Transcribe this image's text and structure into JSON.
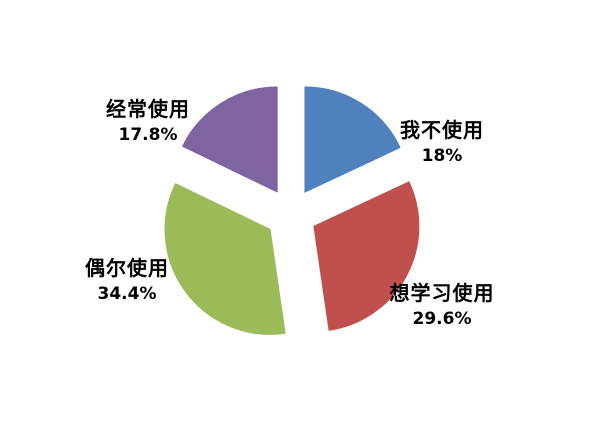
{
  "page": {
    "background_color": "#ffffff",
    "text_color": "#000000"
  },
  "chart_data": {
    "type": "pie",
    "title": "",
    "exploded": true,
    "start_angle_deg": 0,
    "direction": "clockwise",
    "legend": "none",
    "labels_position": "outside",
    "categories": [
      "我不使用",
      "想学习使用",
      "偶尔使用",
      "经常使用"
    ],
    "values": [
      18,
      29.6,
      34.4,
      17.8
    ],
    "slices": [
      {
        "label": "我不使用",
        "pct_label": "18%",
        "value": 18,
        "color": "#4f81bd"
      },
      {
        "label": "想学习使用",
        "pct_label": "29.6%",
        "value": 29.6,
        "color": "#c0504d"
      },
      {
        "label": "偶尔使用",
        "pct_label": "34.4%",
        "value": 34.4,
        "color": "#9bbb59"
      },
      {
        "label": "经常使用",
        "pct_label": "17.8%",
        "value": 17.8,
        "color": "#8064a2"
      }
    ]
  }
}
